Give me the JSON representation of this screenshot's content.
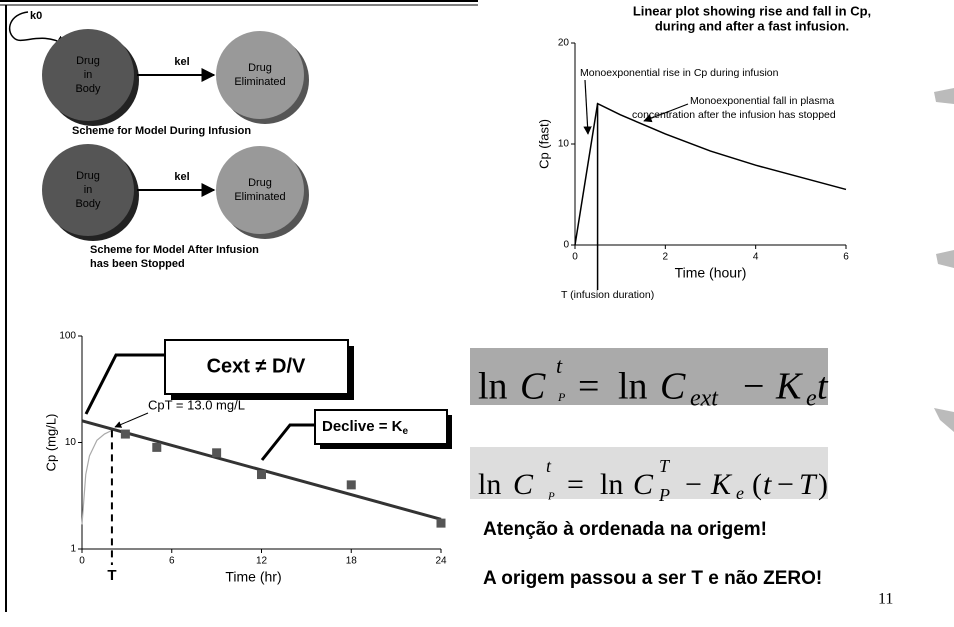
{
  "diagram": {
    "k0": "k0",
    "schemes": [
      {
        "source": [
          "Drug",
          "in",
          "Body"
        ],
        "target": [
          "Drug",
          "Eliminated"
        ],
        "rate": "kel",
        "caption": [
          "Scheme for Model During Infusion"
        ]
      },
      {
        "source": [
          "Drug",
          "in",
          "Body"
        ],
        "target": [
          "Drug",
          "Eliminated"
        ],
        "rate": "kel",
        "caption": [
          "Scheme for Model After Infusion",
          "has been Stopped"
        ]
      }
    ]
  },
  "chart_data": [
    {
      "type": "line",
      "title": [
        "Linear plot showing rise and fall in Cp,",
        "during and after a fast infusion."
      ],
      "x_label": "Time (hour)",
      "y_label": "Cp (fast)",
      "x": [
        0,
        0.5,
        1,
        2,
        3,
        4,
        5,
        6
      ],
      "values": [
        0,
        14,
        12.9,
        11.0,
        9.3,
        7.9,
        6.7,
        5.5
      ],
      "color": "#000000",
      "xlim": [
        0,
        6
      ],
      "ylim": [
        0,
        20
      ],
      "xticks": [
        0,
        2,
        4,
        6
      ],
      "yticks": [
        0,
        10,
        20
      ],
      "annotations": [
        "Monoexponential rise in Cp during infusion",
        "Monoexponential fall in plasma",
        "concentration after the infusion has stopped",
        "T (infusion duration)"
      ]
    },
    {
      "type": "scatter",
      "x_label": "Time (hr)",
      "y_label": "Cp (mg/L)",
      "yscale": "log",
      "x": [
        2.9,
        5,
        9,
        12,
        18,
        24
      ],
      "values": [
        12,
        9,
        8,
        5,
        4,
        1.75
      ],
      "color": "#555555",
      "fit": {
        "x": [
          0,
          24
        ],
        "values": [
          16,
          1.9
        ],
        "color": "#333333"
      },
      "infusion": {
        "x": [
          0,
          0.25,
          0.5,
          1,
          1.5,
          2
        ],
        "values": [
          1.7,
          5,
          7.5,
          10.5,
          12,
          13
        ],
        "color": "#aaaaaa"
      },
      "xlim": [
        0,
        24
      ],
      "ylim": [
        1,
        100
      ],
      "xticks": [
        0,
        6,
        12,
        18,
        24
      ],
      "yticks": [
        1,
        10,
        100
      ],
      "t_marker": {
        "value": 2,
        "label": "T"
      },
      "cext_label": "Cext ≠ D/V",
      "cpt_label": "CpT = 13.0 mg/L",
      "slope_label": "Declive = K",
      "slope_subscript": "e"
    }
  ],
  "equations": [
    {
      "parts": [
        "ln",
        "C",
        "t",
        "P",
        "=",
        "ln",
        "C",
        "ext",
        "−",
        "K",
        "e",
        "t"
      ]
    },
    {
      "parts": [
        "ln",
        "C",
        "t",
        "P",
        "=",
        "ln",
        "C",
        "T",
        "P",
        "−",
        "K",
        "e",
        "(",
        "t",
        "−",
        "T",
        ")"
      ]
    }
  ],
  "notes": [
    "Atenção à ordenada na origem!",
    "A origem passou a ser T e não ZERO!"
  ],
  "page_number": "11"
}
